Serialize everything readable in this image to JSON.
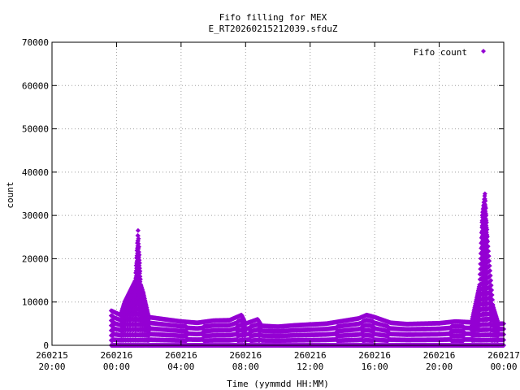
{
  "chart_data": {
    "type": "scatter",
    "title": "Fifo filling for MEX",
    "subtitle": "E_RT20260215212039.sfduZ",
    "xlabel": "Time (yymmdd HH:MM)",
    "ylabel": "count",
    "xlim": [
      "2026-02-15 20:00",
      "2026-02-17 00:00"
    ],
    "ylim": [
      0,
      70000
    ],
    "grid": true,
    "legend_position": "top-right",
    "marker": "diamond",
    "color": "#9400d3",
    "x_ticks": [
      {
        "line1": "260215",
        "line2": "20:00"
      },
      {
        "line1": "260216",
        "line2": "00:00"
      },
      {
        "line1": "260216",
        "line2": "04:00"
      },
      {
        "line1": "260216",
        "line2": "08:00"
      },
      {
        "line1": "260216",
        "line2": "12:00"
      },
      {
        "line1": "260216",
        "line2": "16:00"
      },
      {
        "line1": "260216",
        "line2": "20:00"
      },
      {
        "line1": "260217",
        "line2": "00:00"
      }
    ],
    "y_ticks": [
      "0",
      "10000",
      "20000",
      "30000",
      "40000",
      "50000",
      "60000",
      "70000"
    ],
    "series": [
      {
        "name": "Fifo count",
        "x": [
          "2026-02-15 23:40",
          "2026-02-16 00:15",
          "2026-02-16 00:30",
          "2026-02-16 01:10",
          "2026-02-16 01:20",
          "2026-02-16 01:30",
          "2026-02-16 01:40",
          "2026-02-16 02:00",
          "2026-02-16 03:00",
          "2026-02-16 04:00",
          "2026-02-16 05:00",
          "2026-02-16 06:00",
          "2026-02-16 07:00",
          "2026-02-16 07:45",
          "2026-02-16 08:00",
          "2026-02-16 08:45",
          "2026-02-16 09:00",
          "2026-02-16 10:00",
          "2026-02-16 11:00",
          "2026-02-16 12:00",
          "2026-02-16 13:00",
          "2026-02-16 14:00",
          "2026-02-16 15:00",
          "2026-02-16 15:30",
          "2026-02-16 16:00",
          "2026-02-16 17:00",
          "2026-02-16 18:00",
          "2026-02-16 19:00",
          "2026-02-16 20:00",
          "2026-02-16 21:00",
          "2026-02-16 22:00",
          "2026-02-16 22:30",
          "2026-02-16 22:40",
          "2026-02-16 22:50",
          "2026-02-16 23:00",
          "2026-02-16 23:20",
          "2026-02-16 23:40",
          "2026-02-17 00:00"
        ],
        "y": [
          8000,
          7000,
          10000,
          15000,
          26500,
          14000,
          12000,
          6500,
          6000,
          5500,
          5200,
          5700,
          5800,
          7000,
          5000,
          6000,
          4500,
          4300,
          4600,
          4800,
          5000,
          5600,
          6200,
          7000,
          6500,
          5200,
          4900,
          5000,
          5100,
          5500,
          5300,
          14000,
          30000,
          35000,
          24000,
          9000,
          5000,
          5000
        ]
      }
    ]
  }
}
